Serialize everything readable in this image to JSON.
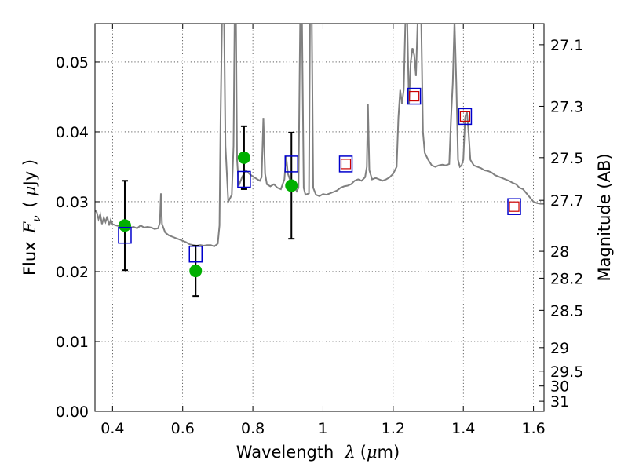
{
  "chart_data": {
    "type": "scatter",
    "xlabel_prefix": "Wavelength",
    "xlabel_symbol": "λ",
    "xlabel_unit_open": "(",
    "xlabel_unit_mu": "μ",
    "xlabel_unit_rest": "m)",
    "ylabel_prefix": "Flux",
    "ylabel_symbol": "F",
    "ylabel_subscript": "ν",
    "ylabel_unit_open": "(",
    "ylabel_unit_mu": "μ",
    "ylabel_unit_rest": "Jy )",
    "y2label": "Magnitude (AB)",
    "xlim": [
      0.35,
      1.63
    ],
    "ylim": [
      0.0,
      0.0555
    ],
    "x_ticks": [
      0.4,
      0.6,
      0.8,
      1.0,
      1.2,
      1.4,
      1.6
    ],
    "x_tick_labels": [
      "0.4",
      "0.6",
      "0.8",
      "1",
      "1.2",
      "1.4",
      "1.6"
    ],
    "y_ticks": [
      0.0,
      0.01,
      0.02,
      0.03,
      0.04,
      0.05
    ],
    "y_tick_labels": [
      "0.00",
      "0.01",
      "0.02",
      "0.03",
      "0.04",
      "0.05"
    ],
    "y2_tick_labels": [
      "27.1",
      "27.3",
      "27.5",
      "27.7",
      "28",
      "28.2",
      "28.5",
      "29",
      "29.5",
      "30",
      "31"
    ],
    "grid": true,
    "colors": {
      "spectrum": "#808080",
      "model": "#0000cc",
      "model_inner": "#cc0000",
      "observed": "#00b000",
      "errorbar": "#000000"
    },
    "spectrum": [
      [
        0.35,
        0.0288
      ],
      [
        0.355,
        0.0285
      ],
      [
        0.36,
        0.0275
      ],
      [
        0.365,
        0.0282
      ],
      [
        0.37,
        0.0268
      ],
      [
        0.375,
        0.0277
      ],
      [
        0.38,
        0.0271
      ],
      [
        0.385,
        0.0279
      ],
      [
        0.39,
        0.0266
      ],
      [
        0.395,
        0.0274
      ],
      [
        0.4,
        0.0268
      ],
      [
        0.41,
        0.0266
      ],
      [
        0.42,
        0.0265
      ],
      [
        0.43,
        0.0263
      ],
      [
        0.44,
        0.0262
      ],
      [
        0.45,
        0.0263
      ],
      [
        0.46,
        0.0264
      ],
      [
        0.47,
        0.0262
      ],
      [
        0.48,
        0.0266
      ],
      [
        0.49,
        0.0263
      ],
      [
        0.5,
        0.0264
      ],
      [
        0.51,
        0.0263
      ],
      [
        0.52,
        0.0261
      ],
      [
        0.53,
        0.0262
      ],
      [
        0.535,
        0.027
      ],
      [
        0.538,
        0.0312
      ],
      [
        0.541,
        0.0268
      ],
      [
        0.55,
        0.0256
      ],
      [
        0.56,
        0.0252
      ],
      [
        0.57,
        0.025
      ],
      [
        0.58,
        0.0248
      ],
      [
        0.59,
        0.0246
      ],
      [
        0.6,
        0.0244
      ],
      [
        0.61,
        0.0242
      ],
      [
        0.62,
        0.0239
      ],
      [
        0.63,
        0.0238
      ],
      [
        0.64,
        0.0237
      ],
      [
        0.65,
        0.0238
      ],
      [
        0.66,
        0.0237
      ],
      [
        0.67,
        0.0238
      ],
      [
        0.68,
        0.0238
      ],
      [
        0.69,
        0.0236
      ],
      [
        0.7,
        0.024
      ],
      [
        0.705,
        0.0266
      ],
      [
        0.708,
        0.042
      ],
      [
        0.712,
        0.056
      ],
      [
        0.718,
        0.056
      ],
      [
        0.722,
        0.038
      ],
      [
        0.73,
        0.03
      ],
      [
        0.74,
        0.031
      ],
      [
        0.745,
        0.038
      ],
      [
        0.748,
        0.056
      ],
      [
        0.752,
        0.056
      ],
      [
        0.755,
        0.036
      ],
      [
        0.76,
        0.0323
      ],
      [
        0.77,
        0.0336
      ],
      [
        0.78,
        0.0345
      ],
      [
        0.79,
        0.034
      ],
      [
        0.8,
        0.0336
      ],
      [
        0.81,
        0.0333
      ],
      [
        0.82,
        0.033
      ],
      [
        0.825,
        0.0335
      ],
      [
        0.83,
        0.042
      ],
      [
        0.835,
        0.034
      ],
      [
        0.84,
        0.0325
      ],
      [
        0.85,
        0.0322
      ],
      [
        0.86,
        0.0325
      ],
      [
        0.87,
        0.032
      ],
      [
        0.88,
        0.0318
      ],
      [
        0.89,
        0.0332
      ],
      [
        0.895,
        0.0365
      ],
      [
        0.9,
        0.034
      ],
      [
        0.91,
        0.0325
      ],
      [
        0.92,
        0.032
      ],
      [
        0.925,
        0.0315
      ],
      [
        0.93,
        0.032
      ],
      [
        0.935,
        0.056
      ],
      [
        0.94,
        0.056
      ],
      [
        0.945,
        0.032
      ],
      [
        0.95,
        0.031
      ],
      [
        0.96,
        0.0312
      ],
      [
        0.963,
        0.056
      ],
      [
        0.968,
        0.056
      ],
      [
        0.972,
        0.032
      ],
      [
        0.98,
        0.031
      ],
      [
        0.99,
        0.0308
      ],
      [
        1.0,
        0.0311
      ],
      [
        1.01,
        0.031
      ],
      [
        1.02,
        0.0312
      ],
      [
        1.03,
        0.0314
      ],
      [
        1.04,
        0.0316
      ],
      [
        1.05,
        0.032
      ],
      [
        1.06,
        0.0322
      ],
      [
        1.07,
        0.0323
      ],
      [
        1.08,
        0.0325
      ],
      [
        1.09,
        0.033
      ],
      [
        1.1,
        0.0332
      ],
      [
        1.11,
        0.033
      ],
      [
        1.12,
        0.0335
      ],
      [
        1.125,
        0.035
      ],
      [
        1.128,
        0.044
      ],
      [
        1.132,
        0.0345
      ],
      [
        1.14,
        0.0332
      ],
      [
        1.15,
        0.0334
      ],
      [
        1.16,
        0.0332
      ],
      [
        1.17,
        0.033
      ],
      [
        1.18,
        0.0332
      ],
      [
        1.19,
        0.0335
      ],
      [
        1.2,
        0.034
      ],
      [
        1.21,
        0.035
      ],
      [
        1.215,
        0.042
      ],
      [
        1.22,
        0.046
      ],
      [
        1.225,
        0.044
      ],
      [
        1.23,
        0.046
      ],
      [
        1.235,
        0.056
      ],
      [
        1.24,
        0.056
      ],
      [
        1.245,
        0.044
      ],
      [
        1.25,
        0.05
      ],
      [
        1.255,
        0.052
      ],
      [
        1.26,
        0.051
      ],
      [
        1.265,
        0.048
      ],
      [
        1.27,
        0.056
      ],
      [
        1.28,
        0.056
      ],
      [
        1.285,
        0.04
      ],
      [
        1.29,
        0.037
      ],
      [
        1.3,
        0.036
      ],
      [
        1.31,
        0.0352
      ],
      [
        1.32,
        0.035
      ],
      [
        1.33,
        0.0352
      ],
      [
        1.34,
        0.0353
      ],
      [
        1.35,
        0.0352
      ],
      [
        1.36,
        0.0354
      ],
      [
        1.365,
        0.042
      ],
      [
        1.37,
        0.047
      ],
      [
        1.375,
        0.056
      ],
      [
        1.38,
        0.047
      ],
      [
        1.385,
        0.036
      ],
      [
        1.39,
        0.035
      ],
      [
        1.395,
        0.0352
      ],
      [
        1.4,
        0.036
      ],
      [
        1.405,
        0.042
      ],
      [
        1.41,
        0.043
      ],
      [
        1.415,
        0.04
      ],
      [
        1.42,
        0.036
      ],
      [
        1.43,
        0.0352
      ],
      [
        1.44,
        0.035
      ],
      [
        1.45,
        0.0348
      ],
      [
        1.46,
        0.0345
      ],
      [
        1.47,
        0.0344
      ],
      [
        1.48,
        0.0342
      ],
      [
        1.49,
        0.0338
      ],
      [
        1.5,
        0.0336
      ],
      [
        1.51,
        0.0334
      ],
      [
        1.52,
        0.0332
      ],
      [
        1.53,
        0.033
      ],
      [
        1.54,
        0.0327
      ],
      [
        1.55,
        0.0325
      ],
      [
        1.56,
        0.032
      ],
      [
        1.57,
        0.0318
      ],
      [
        1.58,
        0.0312
      ],
      [
        1.59,
        0.0306
      ],
      [
        1.6,
        0.03
      ],
      [
        1.61,
        0.0298
      ],
      [
        1.62,
        0.0297
      ],
      [
        1.63,
        0.0297
      ]
    ],
    "model_points": [
      {
        "x": 0.435,
        "y": 0.0252
      },
      {
        "x": 0.637,
        "y": 0.0225
      },
      {
        "x": 0.775,
        "y": 0.0332
      },
      {
        "x": 0.91,
        "y": 0.0354
      },
      {
        "x": 1.065,
        "y": 0.0354
      },
      {
        "x": 1.26,
        "y": 0.0451
      },
      {
        "x": 1.405,
        "y": 0.0422
      },
      {
        "x": 1.545,
        "y": 0.0293
      }
    ],
    "model_inner_points": [
      {
        "x": 1.065,
        "y": 0.0354
      },
      {
        "x": 1.26,
        "y": 0.0451
      },
      {
        "x": 1.405,
        "y": 0.0422
      },
      {
        "x": 1.545,
        "y": 0.0293
      }
    ],
    "observed_points": [
      {
        "x": 0.435,
        "y": 0.0266,
        "err": 0.0064
      },
      {
        "x": 0.637,
        "y": 0.0201,
        "err": 0.0036
      },
      {
        "x": 0.775,
        "y": 0.0363,
        "err": 0.0045
      },
      {
        "x": 0.91,
        "y": 0.0323,
        "err": 0.0076
      }
    ]
  }
}
